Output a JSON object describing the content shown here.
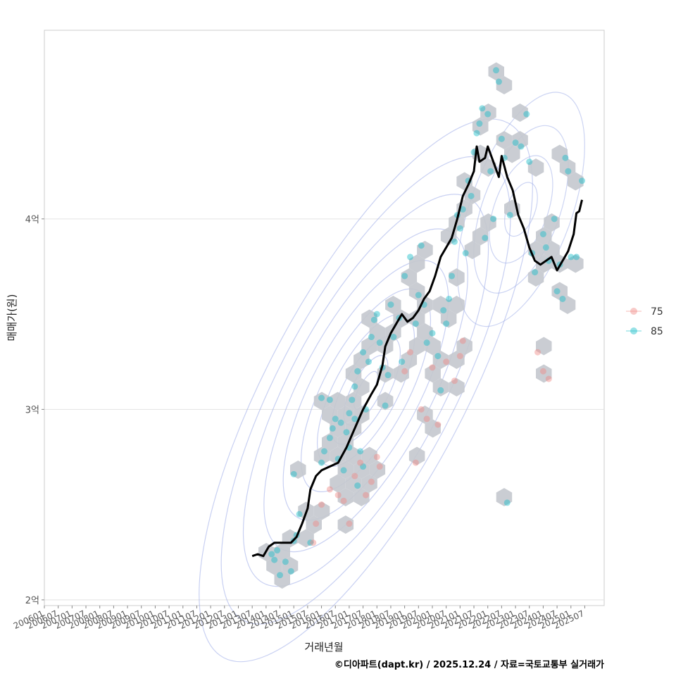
{
  "chart_data": {
    "type": "scatter",
    "xlabel": "거래년월",
    "ylabel": "매매가(원)",
    "caption": "©디아파트(dapt.kr) / 2025.12.24 / 자료=국토교통부 실거래가",
    "xlim": [
      2006.0,
      2026.2
    ],
    "ylim": [
      1.97,
      4.99
    ],
    "y_unit": "억",
    "y_ticks": [
      2,
      3,
      4
    ],
    "y_tick_labels": [
      "2억",
      "3억",
      "4억"
    ],
    "x_ticks": [
      2006.0,
      2006.5,
      2007.0,
      2007.5,
      2008.0,
      2008.5,
      2009.0,
      2009.5,
      2010.0,
      2010.5,
      2011.0,
      2011.5,
      2012.0,
      2012.5,
      2013.0,
      2013.5,
      2014.0,
      2014.5,
      2015.0,
      2015.5,
      2016.0,
      2016.5,
      2017.0,
      2017.5,
      2018.0,
      2018.5,
      2019.0,
      2019.5,
      2020.0,
      2020.5,
      2021.0,
      2021.5,
      2022.0,
      2022.5,
      2023.0,
      2023.5,
      2024.0,
      2024.5,
      2025.0,
      2025.5
    ],
    "x_tick_labels": [
      "200601",
      "200607",
      "200701",
      "200707",
      "200801",
      "200807",
      "200901",
      "200907",
      "201001",
      "201007",
      "201101",
      "201107",
      "201201",
      "201207",
      "201301",
      "201307",
      "201401",
      "201407",
      "201501",
      "201507",
      "201601",
      "201607",
      "201701",
      "201707",
      "201801",
      "201807",
      "201901",
      "201907",
      "202001",
      "202007",
      "202101",
      "202107",
      "202201",
      "202207",
      "202301",
      "202307",
      "202401",
      "202407",
      "202501",
      "202507"
    ],
    "legend": {
      "position": "right",
      "entries": [
        {
          "label": "75",
          "color": "#f08a84"
        },
        {
          "label": "85",
          "color": "#17bdc8"
        }
      ]
    },
    "series": [
      {
        "name": "85",
        "type": "points",
        "color": "#17bdc8",
        "points": [
          [
            2014.2,
            2.24
          ],
          [
            2014.3,
            2.21
          ],
          [
            2014.4,
            2.26
          ],
          [
            2014.5,
            2.13
          ],
          [
            2014.7,
            2.2
          ],
          [
            2014.9,
            2.15
          ],
          [
            2015.0,
            2.31
          ],
          [
            2015.1,
            2.34
          ],
          [
            2015.2,
            2.45
          ],
          [
            2015.0,
            2.66
          ],
          [
            2015.6,
            2.3
          ],
          [
            2016.0,
            2.72
          ],
          [
            2016.1,
            2.78
          ],
          [
            2016.3,
            2.85
          ],
          [
            2016.4,
            2.9
          ],
          [
            2016.5,
            2.95
          ],
          [
            2016.3,
            3.05
          ],
          [
            2016.0,
            3.06
          ],
          [
            2016.6,
            2.74
          ],
          [
            2016.7,
            2.93
          ],
          [
            2016.8,
            2.68
          ],
          [
            2016.9,
            2.88
          ],
          [
            2017.0,
            2.98
          ],
          [
            2017.1,
            3.05
          ],
          [
            2017.2,
            3.12
          ],
          [
            2017.3,
            3.2
          ],
          [
            2017.4,
            2.78
          ],
          [
            2017.5,
            2.7
          ],
          [
            2017.6,
            3.0
          ],
          [
            2017.7,
            3.25
          ],
          [
            2017.8,
            3.38
          ],
          [
            2017.9,
            3.47
          ],
          [
            2017.2,
            2.95
          ],
          [
            2017.5,
            3.3
          ],
          [
            2017.0,
            2.8
          ],
          [
            2017.3,
            2.6
          ],
          [
            2018.0,
            3.5
          ],
          [
            2018.1,
            3.35
          ],
          [
            2018.2,
            3.22
          ],
          [
            2018.3,
            3.02
          ],
          [
            2018.4,
            3.18
          ],
          [
            2018.5,
            3.55
          ],
          [
            2018.6,
            3.38
          ],
          [
            2018.8,
            3.48
          ],
          [
            2018.9,
            3.25
          ],
          [
            2019.0,
            3.7
          ],
          [
            2019.2,
            3.8
          ],
          [
            2019.4,
            3.45
          ],
          [
            2019.5,
            3.6
          ],
          [
            2019.6,
            3.86
          ],
          [
            2019.7,
            3.55
          ],
          [
            2019.8,
            3.35
          ],
          [
            2020.0,
            3.4
          ],
          [
            2020.2,
            3.28
          ],
          [
            2020.3,
            3.1
          ],
          [
            2020.4,
            3.52
          ],
          [
            2020.5,
            3.45
          ],
          [
            2020.6,
            3.58
          ],
          [
            2020.7,
            3.7
          ],
          [
            2020.8,
            3.88
          ],
          [
            2020.9,
            4.02
          ],
          [
            2021.0,
            3.95
          ],
          [
            2021.1,
            4.05
          ],
          [
            2021.2,
            3.82
          ],
          [
            2021.3,
            4.2
          ],
          [
            2021.4,
            4.12
          ],
          [
            2021.5,
            4.35
          ],
          [
            2021.6,
            4.45
          ],
          [
            2021.7,
            4.5
          ],
          [
            2021.8,
            4.58
          ],
          [
            2021.9,
            3.9
          ],
          [
            2022.0,
            4.55
          ],
          [
            2022.1,
            4.25
          ],
          [
            2022.2,
            4.0
          ],
          [
            2022.3,
            4.78
          ],
          [
            2022.4,
            4.72
          ],
          [
            2022.5,
            4.42
          ],
          [
            2022.6,
            4.32
          ],
          [
            2022.7,
            2.51
          ],
          [
            2022.8,
            4.02
          ],
          [
            2023.0,
            4.4
          ],
          [
            2023.2,
            4.38
          ],
          [
            2023.4,
            4.55
          ],
          [
            2023.5,
            4.3
          ],
          [
            2023.6,
            3.82
          ],
          [
            2023.7,
            3.72
          ],
          [
            2024.0,
            3.92
          ],
          [
            2024.1,
            3.85
          ],
          [
            2024.2,
            3.78
          ],
          [
            2024.4,
            4.0
          ],
          [
            2024.5,
            3.62
          ],
          [
            2024.6,
            3.76
          ],
          [
            2024.7,
            3.58
          ],
          [
            2024.8,
            4.32
          ],
          [
            2024.9,
            4.25
          ],
          [
            2025.0,
            3.8
          ],
          [
            2025.2,
            3.8
          ],
          [
            2025.4,
            4.2
          ]
        ]
      },
      {
        "name": "75",
        "type": "points",
        "color": "#f08a84",
        "points": [
          [
            2015.7,
            2.3
          ],
          [
            2015.8,
            2.4
          ],
          [
            2016.0,
            2.5
          ],
          [
            2016.3,
            2.58
          ],
          [
            2016.6,
            2.55
          ],
          [
            2016.8,
            2.52
          ],
          [
            2017.0,
            2.4
          ],
          [
            2017.2,
            2.65
          ],
          [
            2017.4,
            2.72
          ],
          [
            2017.6,
            2.55
          ],
          [
            2017.8,
            2.62
          ],
          [
            2018.0,
            2.75
          ],
          [
            2018.1,
            2.7
          ],
          [
            2019.0,
            3.2
          ],
          [
            2019.2,
            3.3
          ],
          [
            2019.4,
            2.72
          ],
          [
            2019.6,
            3.0
          ],
          [
            2019.8,
            2.95
          ],
          [
            2020.0,
            3.22
          ],
          [
            2020.2,
            2.92
          ],
          [
            2020.5,
            3.25
          ],
          [
            2020.8,
            3.15
          ],
          [
            2021.0,
            3.28
          ],
          [
            2021.1,
            3.36
          ],
          [
            2023.8,
            3.3
          ],
          [
            2024.0,
            3.2
          ],
          [
            2024.2,
            3.16
          ]
        ]
      },
      {
        "name": "moving-average",
        "type": "line",
        "color": "#000000",
        "points": [
          [
            2013.5,
            2.23
          ],
          [
            2013.7,
            2.24
          ],
          [
            2013.9,
            2.23
          ],
          [
            2014.1,
            2.28
          ],
          [
            2014.3,
            2.3
          ],
          [
            2014.6,
            2.3
          ],
          [
            2014.9,
            2.3
          ],
          [
            2015.1,
            2.33
          ],
          [
            2015.3,
            2.4
          ],
          [
            2015.5,
            2.48
          ],
          [
            2015.6,
            2.58
          ],
          [
            2015.8,
            2.65
          ],
          [
            2016.0,
            2.68
          ],
          [
            2016.3,
            2.7
          ],
          [
            2016.6,
            2.72
          ],
          [
            2016.9,
            2.8
          ],
          [
            2017.2,
            2.9
          ],
          [
            2017.5,
            3.0
          ],
          [
            2017.8,
            3.08
          ],
          [
            2018.0,
            3.13
          ],
          [
            2018.2,
            3.23
          ],
          [
            2018.3,
            3.33
          ],
          [
            2018.5,
            3.4
          ],
          [
            2018.7,
            3.45
          ],
          [
            2018.9,
            3.5
          ],
          [
            2019.1,
            3.46
          ],
          [
            2019.3,
            3.48
          ],
          [
            2019.5,
            3.52
          ],
          [
            2019.7,
            3.58
          ],
          [
            2019.9,
            3.62
          ],
          [
            2020.1,
            3.7
          ],
          [
            2020.3,
            3.8
          ],
          [
            2020.5,
            3.85
          ],
          [
            2020.7,
            3.9
          ],
          [
            2020.9,
            4.0
          ],
          [
            2021.1,
            4.12
          ],
          [
            2021.3,
            4.18
          ],
          [
            2021.5,
            4.25
          ],
          [
            2021.6,
            4.38
          ],
          [
            2021.7,
            4.3
          ],
          [
            2021.9,
            4.32
          ],
          [
            2022.0,
            4.38
          ],
          [
            2022.2,
            4.3
          ],
          [
            2022.4,
            4.22
          ],
          [
            2022.5,
            4.33
          ],
          [
            2022.7,
            4.22
          ],
          [
            2022.9,
            4.15
          ],
          [
            2023.1,
            4.02
          ],
          [
            2023.3,
            3.95
          ],
          [
            2023.5,
            3.85
          ],
          [
            2023.7,
            3.78
          ],
          [
            2023.9,
            3.76
          ],
          [
            2024.1,
            3.78
          ],
          [
            2024.3,
            3.8
          ],
          [
            2024.5,
            3.73
          ],
          [
            2024.7,
            3.78
          ],
          [
            2024.9,
            3.83
          ],
          [
            2025.1,
            3.92
          ],
          [
            2025.2,
            4.03
          ],
          [
            2025.3,
            4.04
          ],
          [
            2025.4,
            4.1
          ]
        ]
      }
    ],
    "hexbin_layer": "present",
    "density_contours": "present"
  }
}
